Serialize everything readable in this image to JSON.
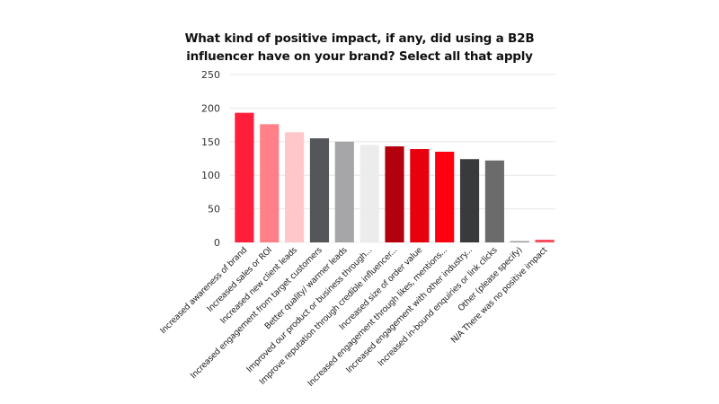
{
  "chart_data": {
    "type": "bar",
    "title": "What kind of positive impact, if any, did using a B2B influencer have on your brand? Select all that apply",
    "title_lines": [
      "What kind of positive impact, if any, did using a B2B",
      "influencer have on your brand? Select all that apply"
    ],
    "xlabel": "",
    "ylabel": "",
    "ylim": [
      0,
      250
    ],
    "yticks": [
      0,
      50,
      100,
      150,
      200,
      250
    ],
    "grid": true,
    "legend": "none",
    "categories": [
      "Increased awareness of brand",
      "Increased sales or ROI",
      "Increased new client leads",
      "Increased engagement from target customers",
      "Better quality/ warmer leads",
      "Improved our product or business through...",
      "Improve reputation through credible influencer...",
      "Increased size of order value",
      "Increased engagement through likes, mentions...",
      "Increased engagement with other industry...",
      "Increased in-bound enquiries or link clicks",
      "Other (please specify)",
      "N/A There was no positive impact"
    ],
    "values": [
      193,
      176,
      164,
      155,
      150,
      145,
      143,
      139,
      135,
      124,
      122,
      2,
      4
    ],
    "colors": [
      "#ff1f3a",
      "#ff8088",
      "#ffc7ca",
      "#55565a",
      "#a6a6a8",
      "#ececec",
      "#b3000f",
      "#e8000d",
      "#ff0010",
      "#393a3c",
      "#6b6b6b",
      "#9d9d9d",
      "#ff4d5e"
    ]
  }
}
